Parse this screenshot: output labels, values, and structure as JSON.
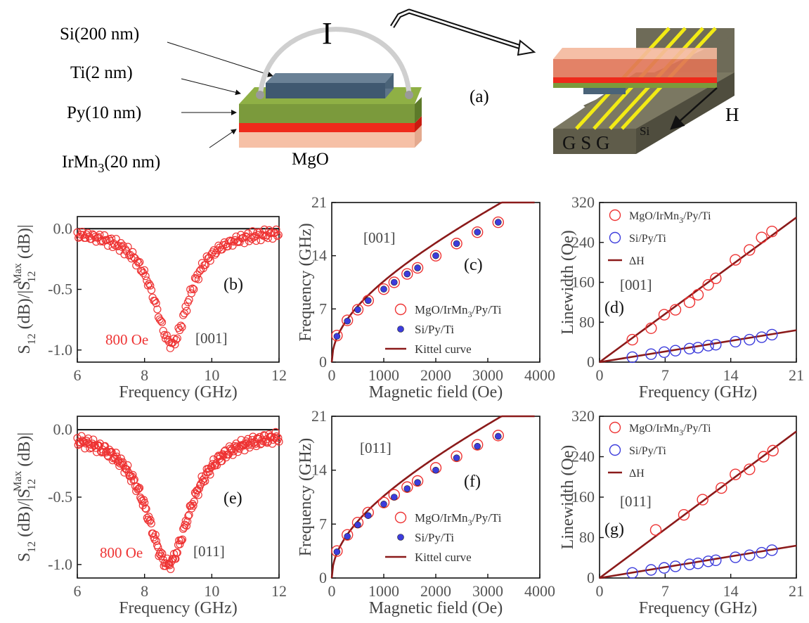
{
  "schematic": {
    "layer_labels": [
      {
        "text": "Si(200 nm)"
      },
      {
        "text": "Ti(2 nm)"
      },
      {
        "text": "Py(10 nm)"
      },
      {
        "text": "IrMn",
        "sub": "3",
        "tail": "(20 nm)"
      }
    ],
    "current_label": "I",
    "substrate_label": "MgO",
    "panel_label": "(a)",
    "cpw_label": "G S G",
    "si_label": "Si",
    "field_label": "H",
    "colors": {
      "si": "#4a6378",
      "ti": "#7b9a3c",
      "py": "#ee2a1b",
      "irmn": "#f6c0a6",
      "cpw": "#6e6b58",
      "strip": "#f2ea14"
    }
  },
  "chart_data": [
    {
      "id": "b",
      "type": "scatter",
      "panel_label": "(b)",
      "annotations": [
        "800 Oe",
        "[001]"
      ],
      "xlabel": "Frequency (GHz)",
      "ylabel": "S12 (dB)/|S12 Max (dB)|",
      "xlim": [
        6,
        12
      ],
      "ylim": [
        -1.1,
        0.1
      ],
      "xticks": [
        "6",
        "8",
        "10",
        "12"
      ],
      "yticks": [
        "0.0",
        "-0.5",
        "-1.0"
      ],
      "baseline": 0,
      "series": [
        {
          "center": 8.8,
          "width": 0.65,
          "depth": -0.95,
          "step": 0.035
        }
      ]
    },
    {
      "id": "e",
      "type": "scatter",
      "panel_label": "(e)",
      "annotations": [
        "800 Oe",
        "[011]"
      ],
      "xlabel": "Frequency (GHz)",
      "ylabel": "S12 (dB)/|S12 Max (dB)|",
      "xlim": [
        6,
        12
      ],
      "ylim": [
        -1.1,
        0.1
      ],
      "xticks": [
        "6",
        "8",
        "10",
        "12"
      ],
      "yticks": [
        "0.0",
        "-0.5",
        "-1.0"
      ],
      "baseline": 0,
      "series": [
        {
          "center": 8.7,
          "width": 0.8,
          "depth": -1.0,
          "step": 0.025
        }
      ]
    },
    {
      "id": "c",
      "type": "scatter",
      "panel_label": "(c)",
      "annotations": [
        "[001]"
      ],
      "xlabel": "Magnetic field (Oe)",
      "ylabel": "Frequency (GHz)",
      "xlim": [
        0,
        4000
      ],
      "ylim": [
        0,
        21
      ],
      "xticks": [
        "0",
        "1000",
        "2000",
        "3000",
        "4000"
      ],
      "yticks": [
        "0",
        "7",
        "14",
        "21"
      ],
      "x": [
        100,
        300,
        500,
        700,
        1000,
        1200,
        1450,
        1650,
        2000,
        2400,
        2800,
        3200
      ],
      "series": [
        {
          "name": "MgO/IrMn3/Py/Ti",
          "marker": "circle-open",
          "color": "#ee3333",
          "values": [
            3.5,
            5.5,
            6.9,
            8.1,
            9.6,
            10.5,
            11.6,
            12.4,
            14.0,
            15.6,
            17.1,
            18.4
          ]
        },
        {
          "name": "Si/Py/Ti",
          "marker": "circle-filled",
          "color": "#3c3cdc",
          "values": [
            3.4,
            5.4,
            6.9,
            8.1,
            9.6,
            10.5,
            11.6,
            12.4,
            14.0,
            15.6,
            17.1,
            18.4
          ]
        },
        {
          "name": "Kittel curve",
          "marker": "line",
          "color": "#8b1a1a"
        }
      ]
    },
    {
      "id": "f",
      "type": "scatter",
      "panel_label": "(f)",
      "annotations": [
        "[011]"
      ],
      "xlabel": "Magnetic field (Oe)",
      "ylabel": "Frequency (GHz)",
      "xlim": [
        0,
        4000
      ],
      "ylim": [
        0,
        21
      ],
      "xticks": [
        "0",
        "1000",
        "2000",
        "3000",
        "4000"
      ],
      "yticks": [
        "0",
        "7",
        "14",
        "21"
      ],
      "x": [
        100,
        300,
        500,
        700,
        1000,
        1200,
        1450,
        1650,
        2000,
        2400,
        2800,
        3200
      ],
      "series": [
        {
          "name": "MgO/IrMn3/Py/Ti",
          "marker": "circle-open",
          "color": "#ee3333",
          "values": [
            3.5,
            5.6,
            7.2,
            8.5,
            9.8,
            10.8,
            11.8,
            12.6,
            14.3,
            15.8,
            17.3,
            18.5
          ]
        },
        {
          "name": "Si/Py/Ti",
          "marker": "circle-filled",
          "color": "#3c3cdc",
          "values": [
            3.4,
            5.4,
            6.9,
            8.1,
            9.6,
            10.5,
            11.6,
            12.4,
            14.0,
            15.6,
            17.1,
            18.4
          ]
        },
        {
          "name": "Kittel curve",
          "marker": "line",
          "color": "#8b1a1a"
        }
      ]
    },
    {
      "id": "d",
      "type": "scatter",
      "panel_label": "(d)",
      "annotations": [
        "[001]"
      ],
      "xlabel": "Frequency (GHz)",
      "ylabel": "Linewidth (Oe)",
      "xlim": [
        0,
        21
      ],
      "ylim": [
        0,
        320
      ],
      "xticks": [
        "0",
        "7",
        "14",
        "21"
      ],
      "yticks": [
        "0",
        "80",
        "160",
        "240",
        "320"
      ],
      "series": [
        {
          "name": "MgO/IrMn3/Py/Ti",
          "marker": "circle-open",
          "color": "#ee3333",
          "x": [
            3.5,
            5.5,
            6.9,
            8.1,
            9.6,
            10.5,
            11.6,
            12.4,
            14.5,
            16.0,
            17.3,
            18.4
          ],
          "values": [
            45,
            68,
            95,
            105,
            120,
            135,
            155,
            168,
            205,
            225,
            250,
            262
          ]
        },
        {
          "name": "Si/Py/Ti",
          "marker": "circle-open",
          "color": "#3c3cdc",
          "x": [
            3.5,
            5.5,
            6.9,
            8.1,
            9.6,
            10.5,
            11.6,
            12.4,
            14.5,
            16.0,
            17.3,
            18.4
          ],
          "values": [
            10,
            16,
            20,
            23,
            27,
            29,
            33,
            35,
            41,
            45,
            50,
            55
          ]
        },
        {
          "name": "ΔH",
          "marker": "line",
          "color": "#8b1a1a",
          "fits": [
            [
              0,
              0,
              21,
              290
            ],
            [
              0,
              0,
              21,
              64
            ]
          ]
        }
      ]
    },
    {
      "id": "g",
      "type": "scatter",
      "panel_label": "(g)",
      "annotations": [
        "[011]"
      ],
      "xlabel": "Frequency (GHz)",
      "ylabel": "Linewidth (Oe)",
      "xlim": [
        0,
        21
      ],
      "ylim": [
        0,
        320
      ],
      "xticks": [
        "0",
        "7",
        "14",
        "21"
      ],
      "yticks": [
        "0",
        "80",
        "160",
        "240",
        "320"
      ],
      "series": [
        {
          "name": "MgO/IrMn3/Py/Ti",
          "marker": "circle-open",
          "color": "#ee3333",
          "x": [
            6.0,
            9.0,
            11.0,
            13.0,
            14.5,
            16.0,
            17.5,
            18.5
          ],
          "values": [
            95,
            125,
            155,
            178,
            205,
            215,
            240,
            252
          ]
        },
        {
          "name": "Si/Py/Ti",
          "marker": "circle-open",
          "color": "#3c3cdc",
          "x": [
            3.5,
            5.5,
            6.9,
            8.1,
            9.6,
            10.5,
            11.6,
            12.4,
            14.5,
            16.0,
            17.3,
            18.4
          ],
          "values": [
            10,
            16,
            20,
            23,
            27,
            29,
            33,
            35,
            41,
            45,
            50,
            55
          ]
        },
        {
          "name": "ΔH",
          "marker": "line",
          "color": "#8b1a1a",
          "fits": [
            [
              0,
              0,
              21,
              290
            ],
            [
              0,
              0,
              21,
              64
            ]
          ]
        }
      ]
    }
  ]
}
